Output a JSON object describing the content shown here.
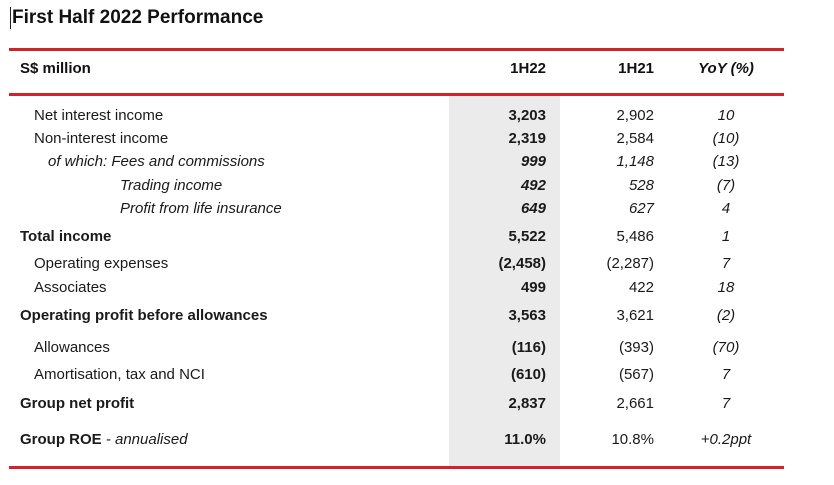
{
  "title": "First Half 2022 Performance",
  "header": {
    "unit": "S$ million",
    "col1": "1H22",
    "col2": "1H21",
    "col3": "YoY (%)"
  },
  "rows": [
    {
      "label": "Net interest income",
      "h22": "3,203",
      "h21": "2,902",
      "yoy": "10"
    },
    {
      "label": "Non-interest income",
      "h22": "2,319",
      "h21": "2,584",
      "yoy": "(10)"
    },
    {
      "label": "of which: Fees and commissions",
      "h22": "999",
      "h21": "1,148",
      "yoy": "(13)"
    },
    {
      "label": "Trading income",
      "h22": "492",
      "h21": "528",
      "yoy": "(7)"
    },
    {
      "label": "Profit from life insurance",
      "h22": "649",
      "h21": "627",
      "yoy": "4"
    },
    {
      "label": "Total income",
      "h22": "5,522",
      "h21": "5,486",
      "yoy": "1"
    },
    {
      "label": "Operating expenses",
      "h22": "(2,458)",
      "h21": "(2,287)",
      "yoy": "7"
    },
    {
      "label": "Associates",
      "h22": "499",
      "h21": "422",
      "yoy": "18"
    },
    {
      "label": "Operating profit before allowances",
      "h22": "3,563",
      "h21": "3,621",
      "yoy": "(2)"
    },
    {
      "label": "Allowances",
      "h22": "(116)",
      "h21": "(393)",
      "yoy": "(70)"
    },
    {
      "label": "Amortisation, tax and NCI",
      "h22": "(610)",
      "h21": "(567)",
      "yoy": "7"
    },
    {
      "label": "Group net profit",
      "h22": "2,837",
      "h21": "2,661",
      "yoy": "7"
    },
    {
      "label": "Group ROE",
      "label_suffix": " - annualised",
      "h22": "11.0%",
      "h21": "10.8%",
      "yoy": "+0.2ppt"
    }
  ]
}
